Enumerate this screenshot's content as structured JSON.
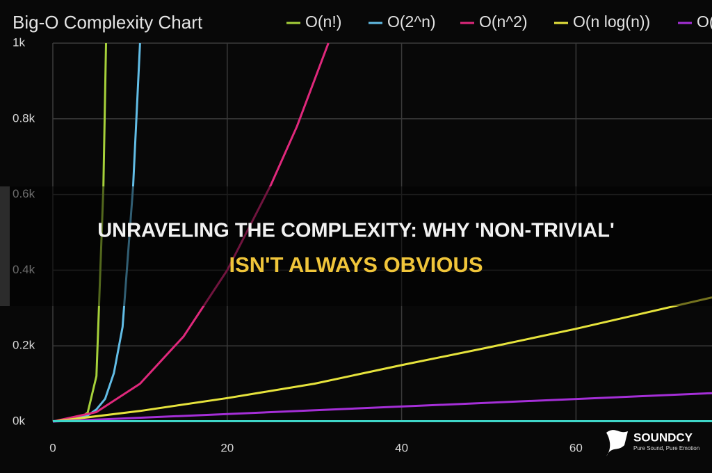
{
  "chart_data": {
    "type": "line",
    "title": "Big-O Complexity Chart",
    "xlim": [
      0,
      75.6
    ],
    "xticks": [
      0,
      20,
      40,
      60
    ],
    "ylim": [
      0,
      1000
    ],
    "yticks": [
      {
        "value": 0,
        "label": "0k"
      },
      {
        "value": 200,
        "label": "0.2k"
      },
      {
        "value": 400,
        "label": "0.4k"
      },
      {
        "value": 600,
        "label": "0.6k"
      },
      {
        "value": 800,
        "label": "0.8k"
      },
      {
        "value": 1000,
        "label": "1k"
      }
    ],
    "grid": true,
    "legend": "top",
    "series": [
      {
        "name": "O(n!)",
        "color": "#a6d13a",
        "x": [
          0,
          1,
          2,
          3,
          4,
          5,
          5.8,
          6.1
        ],
        "values": [
          1,
          1,
          2,
          6,
          24,
          120,
          620,
          1000
        ]
      },
      {
        "name": "O(2^n)",
        "color": "#62bde6",
        "x": [
          0,
          2,
          4,
          5,
          6,
          7,
          8,
          9.2,
          10
        ],
        "values": [
          1,
          4,
          16,
          32,
          60,
          128,
          250,
          620,
          1000
        ]
      },
      {
        "name": "O(n^2)",
        "color": "#e0287c",
        "x": [
          0,
          5,
          10,
          15,
          20,
          25,
          28,
          31.6
        ],
        "values": [
          0,
          25,
          100,
          225,
          400,
          625,
          780,
          1000
        ]
      },
      {
        "name": "O(n log(n))",
        "color": "#e6e33c",
        "x": [
          0,
          10,
          20,
          30,
          40,
          50,
          60,
          75.6
        ],
        "values": [
          0,
          28,
          62,
          100,
          149,
          196,
          245,
          328
        ]
      },
      {
        "name": "O(n)",
        "color": "#a52fd8",
        "x": [
          0,
          75.6
        ],
        "values": [
          0,
          75
        ]
      },
      {
        "color": "#3fd6c8",
        "x": [
          0,
          75.6
        ],
        "values": [
          1,
          1
        ]
      }
    ]
  },
  "overlay": {
    "line1": "UNRAVELING THE COMPLEXITY: WHY 'NON-TRIVIAL'",
    "line2": "ISN'T ALWAYS OBVIOUS"
  },
  "logo": {
    "name": "SOUNDCY",
    "tagline": "Pure Sound, Pure Emotion"
  }
}
